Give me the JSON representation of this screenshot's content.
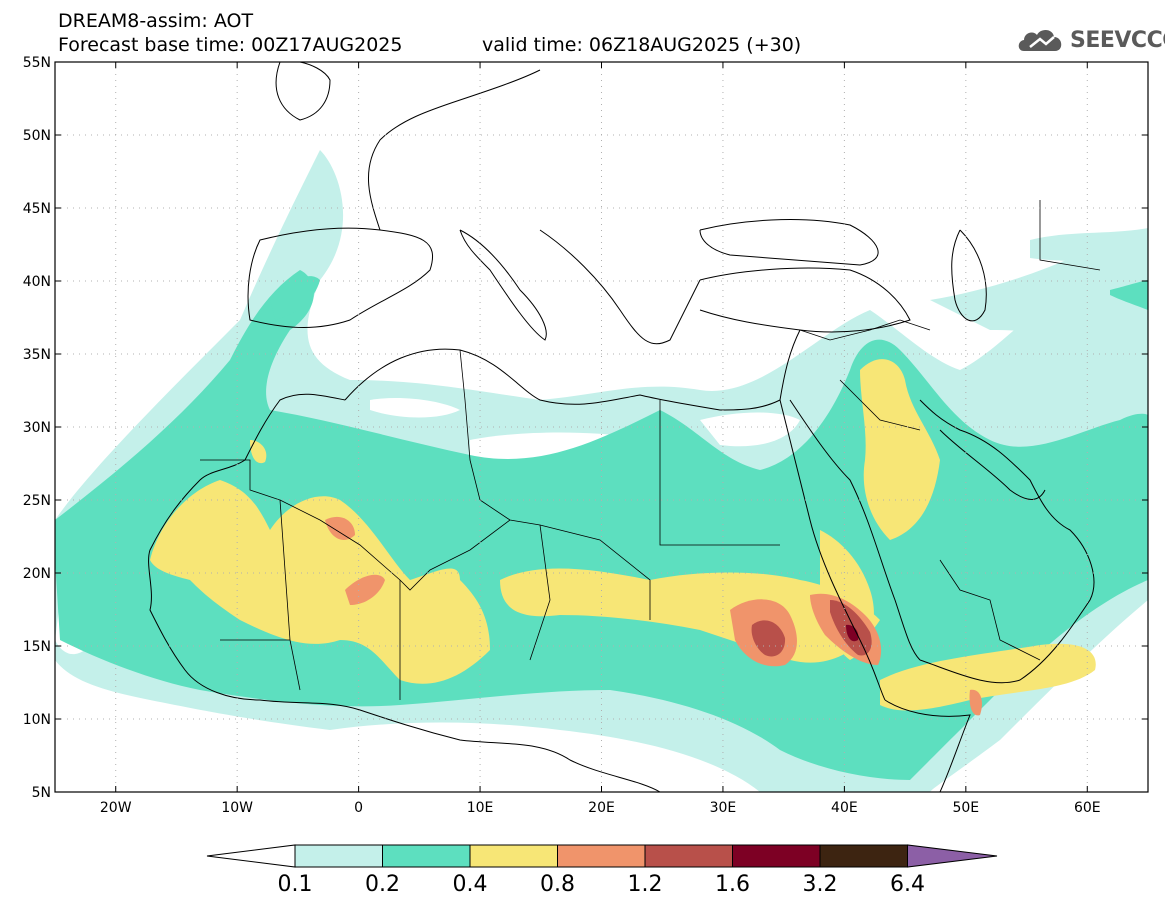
{
  "title": {
    "line1": "DREAM8-assim: AOT",
    "line2_base": "Forecast base time: 00Z17AUG2025",
    "line2_valid": "valid time: 06Z18AUG2025 (+30)"
  },
  "logo": {
    "text": "SEEVCCC",
    "icon": "cloud-logo-icon",
    "color": "#5a5a5a"
  },
  "map": {
    "lon_range": [
      -25,
      65
    ],
    "lat_range": [
      5,
      55
    ],
    "x_ticks": [
      {
        "lon": -20,
        "label": "20W"
      },
      {
        "lon": -10,
        "label": "10W"
      },
      {
        "lon": 0,
        "label": "0"
      },
      {
        "lon": 10,
        "label": "10E"
      },
      {
        "lon": 20,
        "label": "20E"
      },
      {
        "lon": 30,
        "label": "30E"
      },
      {
        "lon": 40,
        "label": "40E"
      },
      {
        "lon": 50,
        "label": "50E"
      },
      {
        "lon": 60,
        "label": "60E"
      }
    ],
    "y_ticks": [
      {
        "lat": 5,
        "label": "5N"
      },
      {
        "lat": 10,
        "label": "10N"
      },
      {
        "lat": 15,
        "label": "15N"
      },
      {
        "lat": 20,
        "label": "20N"
      },
      {
        "lat": 25,
        "label": "25N"
      },
      {
        "lat": 30,
        "label": "30N"
      },
      {
        "lat": 35,
        "label": "35N"
      },
      {
        "lat": 40,
        "label": "40N"
      },
      {
        "lat": 45,
        "label": "45N"
      },
      {
        "lat": 50,
        "label": "50N"
      },
      {
        "lat": 55,
        "label": "55N"
      }
    ]
  },
  "colorbar": {
    "colors": [
      "#c4f0ea",
      "#5ddfbf",
      "#f7e676",
      "#f0946b",
      "#b8504a",
      "#7d0024",
      "#3d2411"
    ],
    "under_color": "#ffffff",
    "over_color": "#8c5fa6",
    "labels": [
      "0.1",
      "0.2",
      "0.4",
      "0.8",
      "1.2",
      "1.6",
      "3.2",
      "6.4"
    ]
  }
}
